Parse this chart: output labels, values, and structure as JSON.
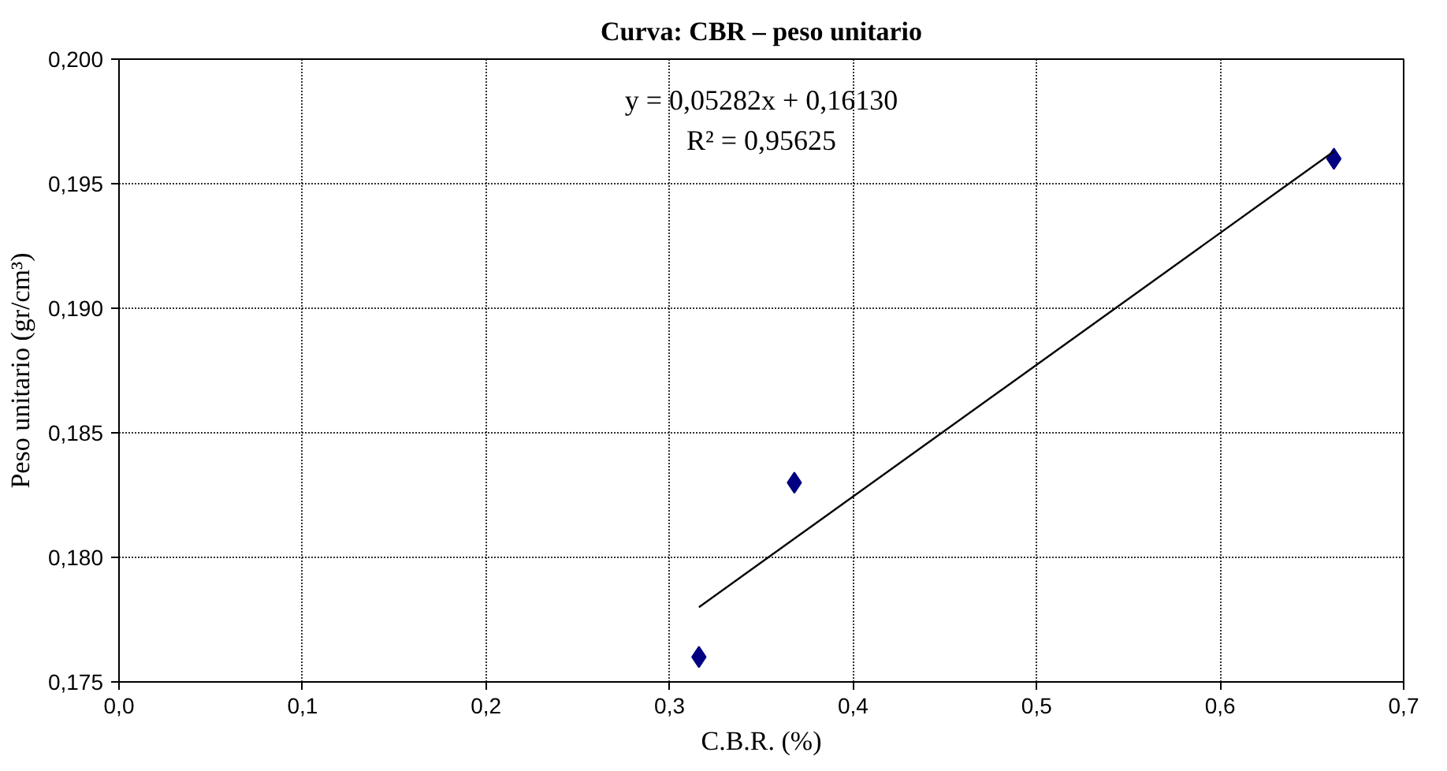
{
  "chart_data": {
    "type": "scatter",
    "title": "Curva: CBR – peso unitario",
    "xlabel": "C.B.R. (%)",
    "ylabel": "Peso unitario (gr/cm³)",
    "marker": "diamond",
    "grid": true,
    "xlim": [
      0,
      0.7
    ],
    "ylim": [
      0.175,
      0.2
    ],
    "xticks": [
      {
        "value": 0,
        "label": "0,0"
      },
      {
        "value": 0.1,
        "label": "0,1"
      },
      {
        "value": 0.2,
        "label": "0,2"
      },
      {
        "value": 0.3,
        "label": "0,3"
      },
      {
        "value": 0.4,
        "label": "0,4"
      },
      {
        "value": 0.5,
        "label": "0,5"
      },
      {
        "value": 0.6,
        "label": "0,6"
      },
      {
        "value": 0.7,
        "label": "0,7"
      }
    ],
    "yticks": [
      {
        "value": 0.175,
        "label": "0,175"
      },
      {
        "value": 0.18,
        "label": "0,180"
      },
      {
        "value": 0.185,
        "label": "0,185"
      },
      {
        "value": 0.19,
        "label": "0,190"
      },
      {
        "value": 0.195,
        "label": "0,195"
      },
      {
        "value": 0.2,
        "label": "0,200"
      }
    ],
    "series": [
      {
        "color": "#000080",
        "x": [
          0.316,
          0.368,
          0.662
        ],
        "values": [
          0.176,
          0.183,
          0.196
        ]
      },
      {
        "type": "line",
        "color": "#000000",
        "marker": "none",
        "x": [
          0.316,
          0.662
        ],
        "values": [
          0.178,
          0.1963
        ]
      }
    ],
    "annotations": [
      "y = 0,05282x + 0,16130",
      "R² = 0,95625"
    ]
  }
}
